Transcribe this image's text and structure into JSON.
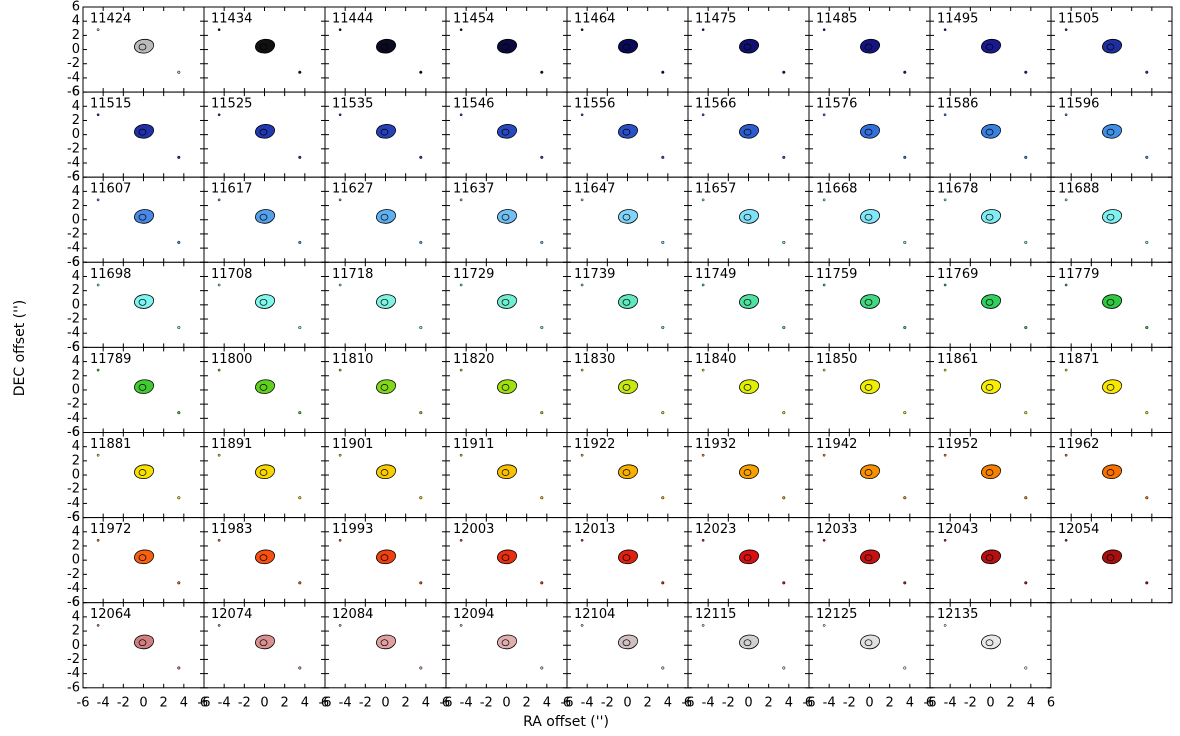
{
  "chart_data": {
    "type": "channel-map",
    "xlabel": "RA offset ('')",
    "ylabel": "DEC offset ('')",
    "xlim": [
      -6,
      6
    ],
    "ylim": [
      -6,
      6
    ],
    "xticks": [
      -6,
      -4,
      -2,
      0,
      2,
      4,
      6
    ],
    "yticks": [
      -6,
      -4,
      -2,
      0,
      2,
      4,
      6
    ],
    "columns": 9,
    "panels": [
      {
        "label": "11424",
        "color": "#bbbbbb"
      },
      {
        "label": "11434",
        "color": "#111111"
      },
      {
        "label": "11444",
        "color": "#0a0a20"
      },
      {
        "label": "11454",
        "color": "#0a0a40"
      },
      {
        "label": "11464",
        "color": "#0a0a5a"
      },
      {
        "label": "11475",
        "color": "#101070"
      },
      {
        "label": "11485",
        "color": "#141480"
      },
      {
        "label": "11495",
        "color": "#1a1a90"
      },
      {
        "label": "11505",
        "color": "#1f2fa0"
      },
      {
        "label": "11515",
        "color": "#2030a8"
      },
      {
        "label": "11525",
        "color": "#2238b0"
      },
      {
        "label": "11535",
        "color": "#2540b8"
      },
      {
        "label": "11546",
        "color": "#2848c0"
      },
      {
        "label": "11556",
        "color": "#2a50c8"
      },
      {
        "label": "11566",
        "color": "#2c5cd0"
      },
      {
        "label": "11576",
        "color": "#3070dc"
      },
      {
        "label": "11586",
        "color": "#3880e0"
      },
      {
        "label": "11596",
        "color": "#4090e8"
      },
      {
        "label": "11607",
        "color": "#4a88e8"
      },
      {
        "label": "11617",
        "color": "#55a0ec"
      },
      {
        "label": "11627",
        "color": "#60b0f0"
      },
      {
        "label": "11637",
        "color": "#70c0f4"
      },
      {
        "label": "11647",
        "color": "#80d4f8"
      },
      {
        "label": "11657",
        "color": "#80e0f8"
      },
      {
        "label": "11668",
        "color": "#80e8f8"
      },
      {
        "label": "11678",
        "color": "#80ecf4"
      },
      {
        "label": "11688",
        "color": "#80f0f0"
      },
      {
        "label": "11698",
        "color": "#80f4f0"
      },
      {
        "label": "11708",
        "color": "#80f8ec"
      },
      {
        "label": "11718",
        "color": "#80f4e0"
      },
      {
        "label": "11729",
        "color": "#70eed0"
      },
      {
        "label": "11739",
        "color": "#60e8c0"
      },
      {
        "label": "11749",
        "color": "#50e0a0"
      },
      {
        "label": "11759",
        "color": "#40d880"
      },
      {
        "label": "11769",
        "color": "#30d060"
      },
      {
        "label": "11779",
        "color": "#30c840"
      },
      {
        "label": "11789",
        "color": "#40cc30"
      },
      {
        "label": "11800",
        "color": "#60d020"
      },
      {
        "label": "11810",
        "color": "#80d818"
      },
      {
        "label": "11820",
        "color": "#a0e010"
      },
      {
        "label": "11830",
        "color": "#c8e810"
      },
      {
        "label": "11840",
        "color": "#e0f000"
      },
      {
        "label": "11850",
        "color": "#f0f000"
      },
      {
        "label": "11861",
        "color": "#f8f000"
      },
      {
        "label": "11871",
        "color": "#f8e800"
      },
      {
        "label": "11881",
        "color": "#f8e000"
      },
      {
        "label": "11891",
        "color": "#f8d800"
      },
      {
        "label": "11901",
        "color": "#f8cc00"
      },
      {
        "label": "11911",
        "color": "#f8c000"
      },
      {
        "label": "11922",
        "color": "#f8b000"
      },
      {
        "label": "11932",
        "color": "#f8a000"
      },
      {
        "label": "11942",
        "color": "#f89000"
      },
      {
        "label": "11952",
        "color": "#f88000"
      },
      {
        "label": "11962",
        "color": "#f87000"
      },
      {
        "label": "11972",
        "color": "#f86010"
      },
      {
        "label": "11983",
        "color": "#f85010"
      },
      {
        "label": "11993",
        "color": "#f04010"
      },
      {
        "label": "12003",
        "color": "#e83010"
      },
      {
        "label": "12013",
        "color": "#e02010"
      },
      {
        "label": "12023",
        "color": "#d81010"
      },
      {
        "label": "12033",
        "color": "#c81010"
      },
      {
        "label": "12043",
        "color": "#b81010"
      },
      {
        "label": "12054",
        "color": "#a81010"
      },
      {
        "label": "12064",
        "color": "#d08080"
      },
      {
        "label": "12074",
        "color": "#d89090"
      },
      {
        "label": "12084",
        "color": "#e0a0a0"
      },
      {
        "label": "12094",
        "color": "#e0b0b0"
      },
      {
        "label": "12104",
        "color": "#d0c0c0"
      },
      {
        "label": "12115",
        "color": "#d0d0d0"
      },
      {
        "label": "12125",
        "color": "#e0e0e0"
      },
      {
        "label": "12135",
        "color": "#e8e8e8"
      }
    ]
  }
}
